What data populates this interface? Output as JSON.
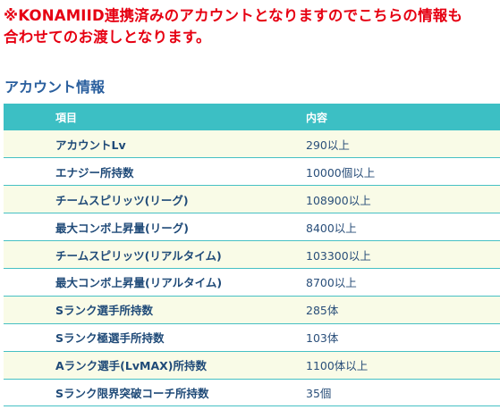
{
  "notice": {
    "line1": "※KONAMIID連携済みのアカウントとなりますのでこちらの情報も",
    "line2": "合わせてのお渡しとなります。"
  },
  "section": {
    "title": "アカウント情報"
  },
  "table": {
    "headers": {
      "item": "項目",
      "content": "内容"
    },
    "rows": [
      {
        "item": "アカウントLv",
        "content": "290以上"
      },
      {
        "item": "エナジー所持数",
        "content": "10000個以上"
      },
      {
        "item": "チームスピリッツ(リーグ)",
        "content": "108900以上"
      },
      {
        "item": "最大コンボ上昇量(リーグ)",
        "content": "8400以上"
      },
      {
        "item": "チームスピリッツ(リアルタイム)",
        "content": "103300以上"
      },
      {
        "item": "最大コンボ上昇量(リアルタイム)",
        "content": "8700以上"
      },
      {
        "item": "Sランク選手所持数",
        "content": "285体"
      },
      {
        "item": "Sランク極選手所持数",
        "content": "103体"
      },
      {
        "item": "Aランク選手(LvMAX)所持数",
        "content": "1100体以上"
      },
      {
        "item": "Sランク限界突破コーチ所持数",
        "content": "35個"
      }
    ]
  },
  "colors": {
    "notice": "#e60012",
    "section_title": "#2a5f9e",
    "table_header_bg": "#3cbfc4",
    "row_alt_bg": "#f9fbe7"
  }
}
